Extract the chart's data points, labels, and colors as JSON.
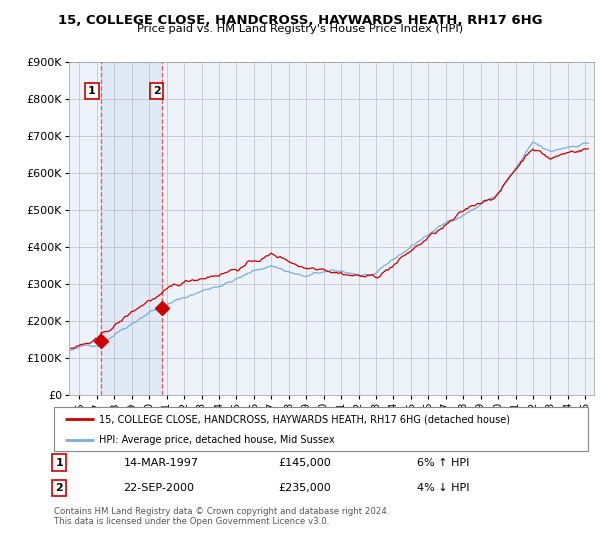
{
  "title": "15, COLLEGE CLOSE, HANDCROSS, HAYWARDS HEATH, RH17 6HG",
  "subtitle": "Price paid vs. HM Land Registry's House Price Index (HPI)",
  "legend_line1": "15, COLLEGE CLOSE, HANDCROSS, HAYWARDS HEATH, RH17 6HG (detached house)",
  "legend_line2": "HPI: Average price, detached house, Mid Sussex",
  "sale1_date": "14-MAR-1997",
  "sale1_price": 145000,
  "sale1_pct": "6% ↑ HPI",
  "sale2_date": "22-SEP-2000",
  "sale2_price": 235000,
  "sale2_pct": "4% ↓ HPI",
  "footnote": "Contains HM Land Registry data © Crown copyright and database right 2024.\nThis data is licensed under the Open Government Licence v3.0.",
  "property_color": "#cc0000",
  "hpi_color": "#7aaddc",
  "vline_color": "#dd4444",
  "highlight_bg": "#ddeeff",
  "ylim": [
    0,
    900000
  ],
  "yticks": [
    0,
    100000,
    200000,
    300000,
    400000,
    500000,
    600000,
    700000,
    800000,
    900000
  ],
  "ytick_labels": [
    "£0",
    "£100K",
    "£200K",
    "£300K",
    "£400K",
    "£500K",
    "£600K",
    "£700K",
    "£800K",
    "£900K"
  ],
  "sale1_x": 1997.21,
  "sale2_x": 2000.72,
  "xlim_start": 1995.4,
  "xlim_end": 2025.5,
  "xtick_years": [
    1996,
    1997,
    1998,
    1999,
    2000,
    2001,
    2002,
    2003,
    2004,
    2005,
    2006,
    2007,
    2008,
    2009,
    2010,
    2011,
    2012,
    2013,
    2014,
    2015,
    2016,
    2017,
    2018,
    2019,
    2020,
    2021,
    2022,
    2023,
    2024,
    2025
  ]
}
